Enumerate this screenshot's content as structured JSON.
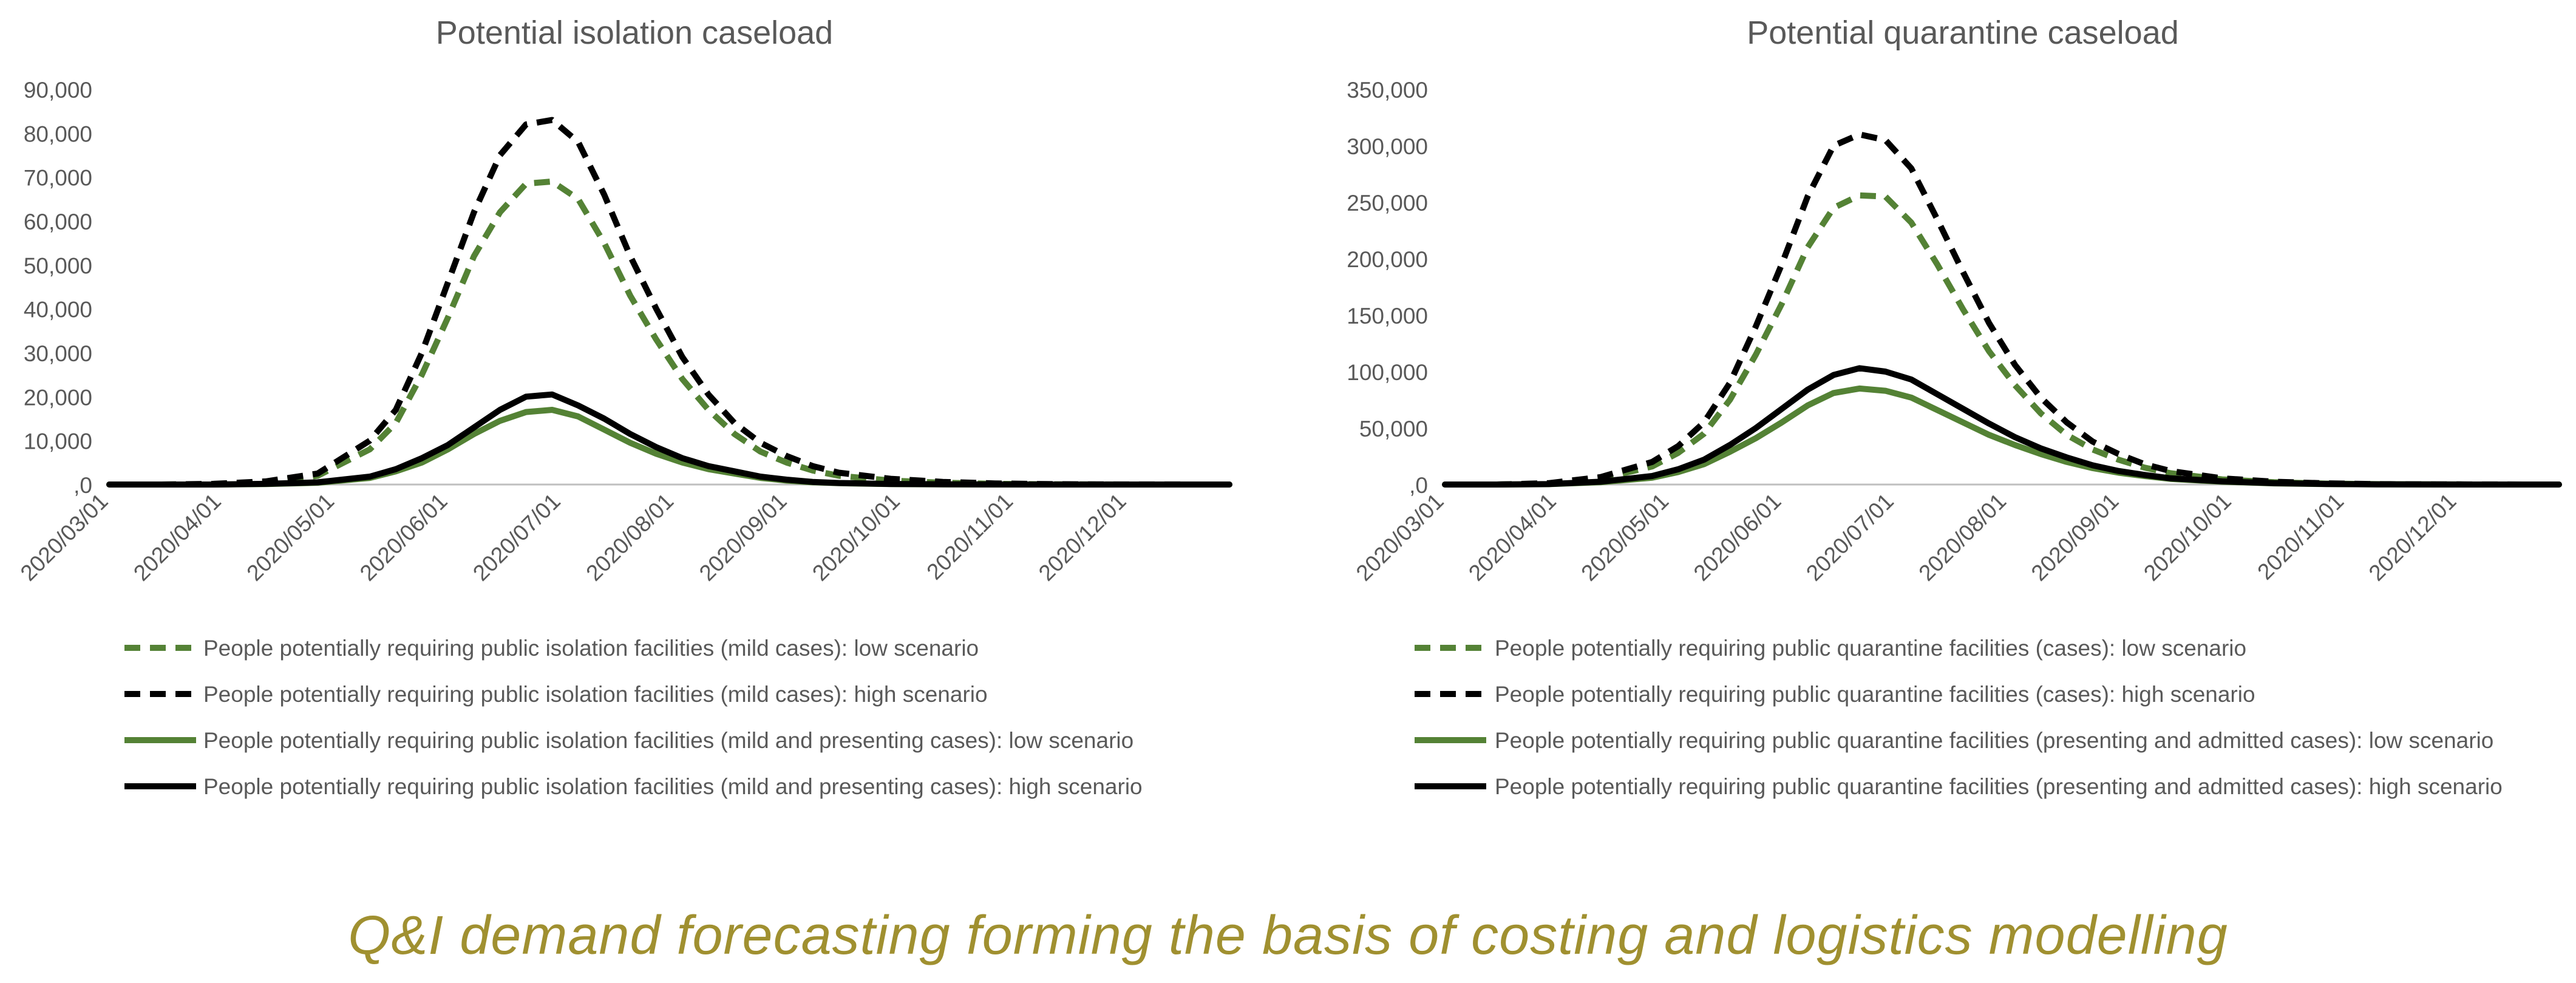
{
  "colors": {
    "green": "#548235",
    "black": "#000000",
    "axis": "#595959",
    "title": "#595959",
    "footer": "#a09030"
  },
  "footer": {
    "text": "Q&I demand forecasting forming the basis of costing and logistics modelling"
  },
  "chart_data": [
    {
      "type": "line",
      "title": "Potential isolation caseload",
      "xlabel": "",
      "ylabel": "",
      "ylim": [
        0,
        90000
      ],
      "yticks": [
        0,
        10000,
        20000,
        30000,
        40000,
        50000,
        60000,
        70000,
        80000,
        90000
      ],
      "ytick_labels": [
        ",0",
        "10,000",
        "20,000",
        "30,000",
        "40,000",
        "50,000",
        "60,000",
        "70,000",
        "80,000",
        "90,000"
      ],
      "x_tick_labels": [
        "2020/03/01",
        "2020/04/01",
        "2020/05/01",
        "2020/06/01",
        "2020/07/01",
        "2020/08/01",
        "2020/09/01",
        "2020/10/01",
        "2020/11/01",
        "2020/12/01"
      ],
      "x_weeks_range": [
        0,
        43
      ],
      "legend_position": "bottom",
      "series": [
        {
          "name": "People potentially requiring public isolation facilities (mild cases): low scenario",
          "color": "#548235",
          "dash": "dashed",
          "x_weeks": [
            0,
            2,
            4,
            6,
            8,
            10,
            11,
            12,
            13,
            14,
            15,
            16,
            17,
            18,
            19,
            20,
            21,
            22,
            23,
            24,
            25,
            26,
            27,
            28,
            30,
            32,
            34,
            36,
            38,
            40,
            43
          ],
          "values": [
            0,
            0,
            100,
            500,
            2000,
            8000,
            14000,
            25000,
            38000,
            52000,
            62000,
            68500,
            69000,
            65000,
            55000,
            43000,
            33000,
            24000,
            17000,
            11500,
            7500,
            5000,
            3200,
            2000,
            900,
            400,
            150,
            60,
            20,
            5,
            0
          ]
        },
        {
          "name": "People potentially requiring public isolation facilities (mild cases): high scenario",
          "color": "#000000",
          "dash": "dashed",
          "x_weeks": [
            0,
            2,
            4,
            6,
            8,
            10,
            11,
            12,
            13,
            14,
            15,
            16,
            17,
            18,
            19,
            20,
            21,
            22,
            23,
            24,
            25,
            26,
            27,
            28,
            30,
            32,
            34,
            36,
            38,
            40,
            43
          ],
          "values": [
            0,
            0,
            150,
            700,
            2500,
            10000,
            17000,
            30000,
            46000,
            62000,
            75000,
            82000,
            83000,
            78000,
            66000,
            52000,
            40000,
            29000,
            20500,
            14000,
            9500,
            6500,
            4200,
            2700,
            1300,
            600,
            250,
            100,
            30,
            10,
            0
          ]
        },
        {
          "name": "People potentially requiring public isolation facilities (mild and presenting cases): low scenario",
          "color": "#548235",
          "dash": "solid",
          "x_weeks": [
            0,
            2,
            4,
            6,
            8,
            10,
            11,
            12,
            13,
            14,
            15,
            16,
            17,
            18,
            19,
            20,
            21,
            22,
            23,
            24,
            25,
            26,
            27,
            28,
            30,
            32,
            34,
            36,
            38,
            40,
            43
          ],
          "values": [
            0,
            0,
            0,
            100,
            400,
            1500,
            3000,
            5000,
            8000,
            11500,
            14500,
            16500,
            17000,
            15500,
            12500,
            9500,
            7000,
            5000,
            3500,
            2500,
            1500,
            900,
            500,
            300,
            100,
            40,
            10,
            0,
            0,
            0,
            0
          ]
        },
        {
          "name": "People potentially requiring public isolation facilities (mild and presenting cases): high scenario",
          "color": "#000000",
          "dash": "solid",
          "x_weeks": [
            0,
            2,
            4,
            6,
            8,
            10,
            11,
            12,
            13,
            14,
            15,
            16,
            17,
            18,
            19,
            20,
            21,
            22,
            23,
            24,
            25,
            26,
            27,
            28,
            30,
            32,
            34,
            36,
            38,
            40,
            43
          ],
          "values": [
            0,
            0,
            0,
            150,
            500,
            1800,
            3500,
            6000,
            9000,
            13000,
            17000,
            20000,
            20500,
            18000,
            15000,
            11500,
            8500,
            6000,
            4200,
            3000,
            1800,
            1100,
            600,
            350,
            120,
            50,
            15,
            0,
            0,
            0,
            0
          ]
        }
      ]
    },
    {
      "type": "line",
      "title": "Potential quarantine caseload",
      "xlabel": "",
      "ylabel": "",
      "ylim": [
        0,
        350000
      ],
      "yticks": [
        0,
        50000,
        100000,
        150000,
        200000,
        250000,
        300000,
        350000
      ],
      "ytick_labels": [
        ",0",
        "50,000",
        "100,000",
        "150,000",
        "200,000",
        "250,000",
        "300,000",
        "350,000"
      ],
      "x_tick_labels": [
        "2020/03/01",
        "2020/04/01",
        "2020/05/01",
        "2020/06/01",
        "2020/07/01",
        "2020/08/01",
        "2020/09/01",
        "2020/10/01",
        "2020/11/01",
        "2020/12/01"
      ],
      "x_weeks_range": [
        0,
        43
      ],
      "legend_position": "bottom",
      "series": [
        {
          "name": "People potentially requiring public quarantine facilities (cases): low scenario",
          "color": "#548235",
          "dash": "dashed",
          "x_weeks": [
            0,
            2,
            4,
            6,
            8,
            9,
            10,
            11,
            12,
            13,
            14,
            15,
            16,
            17,
            18,
            19,
            20,
            21,
            22,
            23,
            24,
            25,
            26,
            27,
            28,
            30,
            32,
            34,
            36,
            38,
            40,
            43
          ],
          "values": [
            0,
            0,
            1000,
            5000,
            16000,
            28000,
            45000,
            75000,
            115000,
            160000,
            210000,
            245000,
            256000,
            255000,
            232000,
            195000,
            155000,
            118000,
            88000,
            63000,
            44000,
            31000,
            22000,
            15000,
            10000,
            4500,
            2000,
            800,
            300,
            100,
            20,
            0
          ]
        },
        {
          "name": "People potentially requiring public quarantine facilities (cases): high scenario",
          "color": "#000000",
          "dash": "dashed",
          "x_weeks": [
            0,
            2,
            4,
            6,
            8,
            9,
            10,
            11,
            12,
            13,
            14,
            15,
            16,
            17,
            18,
            19,
            20,
            21,
            22,
            23,
            24,
            25,
            26,
            27,
            28,
            30,
            32,
            34,
            36,
            38,
            40,
            43
          ],
          "values": [
            0,
            0,
            1200,
            6500,
            20000,
            34000,
            55000,
            90000,
            140000,
            195000,
            255000,
            300000,
            310000,
            305000,
            280000,
            235000,
            188000,
            143000,
            106000,
            77000,
            55000,
            38000,
            27000,
            18000,
            12000,
            5500,
            2500,
            1000,
            400,
            150,
            30,
            0
          ]
        },
        {
          "name": "People potentially requiring public quarantine facilities (presenting and admitted cases): low scenario",
          "color": "#548235",
          "dash": "solid",
          "x_weeks": [
            0,
            2,
            4,
            6,
            8,
            9,
            10,
            11,
            12,
            13,
            14,
            15,
            16,
            17,
            18,
            19,
            20,
            21,
            22,
            23,
            24,
            25,
            26,
            27,
            28,
            30,
            32,
            34,
            36,
            38,
            40,
            43
          ],
          "values": [
            0,
            0,
            300,
            2000,
            6000,
            11000,
            18000,
            29000,
            41000,
            55000,
            70000,
            81000,
            85000,
            83000,
            77000,
            66000,
            55000,
            44000,
            35000,
            27000,
            20000,
            14500,
            10500,
            7500,
            5000,
            2500,
            1000,
            400,
            150,
            50,
            10,
            0
          ]
        },
        {
          "name": "People potentially requiring public quarantine facilities (presenting and admitted cases): high scenario",
          "color": "#000000",
          "dash": "solid",
          "x_weeks": [
            0,
            2,
            4,
            6,
            8,
            9,
            10,
            11,
            12,
            13,
            14,
            15,
            16,
            17,
            18,
            19,
            20,
            21,
            22,
            23,
            24,
            25,
            26,
            27,
            28,
            30,
            32,
            34,
            36,
            38,
            40,
            43
          ],
          "values": [
            0,
            0,
            400,
            2500,
            7500,
            13500,
            22000,
            35000,
            50000,
            67000,
            84000,
            97000,
            103000,
            100000,
            93000,
            80000,
            67000,
            54000,
            42000,
            32000,
            24000,
            17000,
            12000,
            8500,
            5500,
            2800,
            1200,
            500,
            180,
            60,
            12,
            0
          ]
        }
      ]
    }
  ]
}
